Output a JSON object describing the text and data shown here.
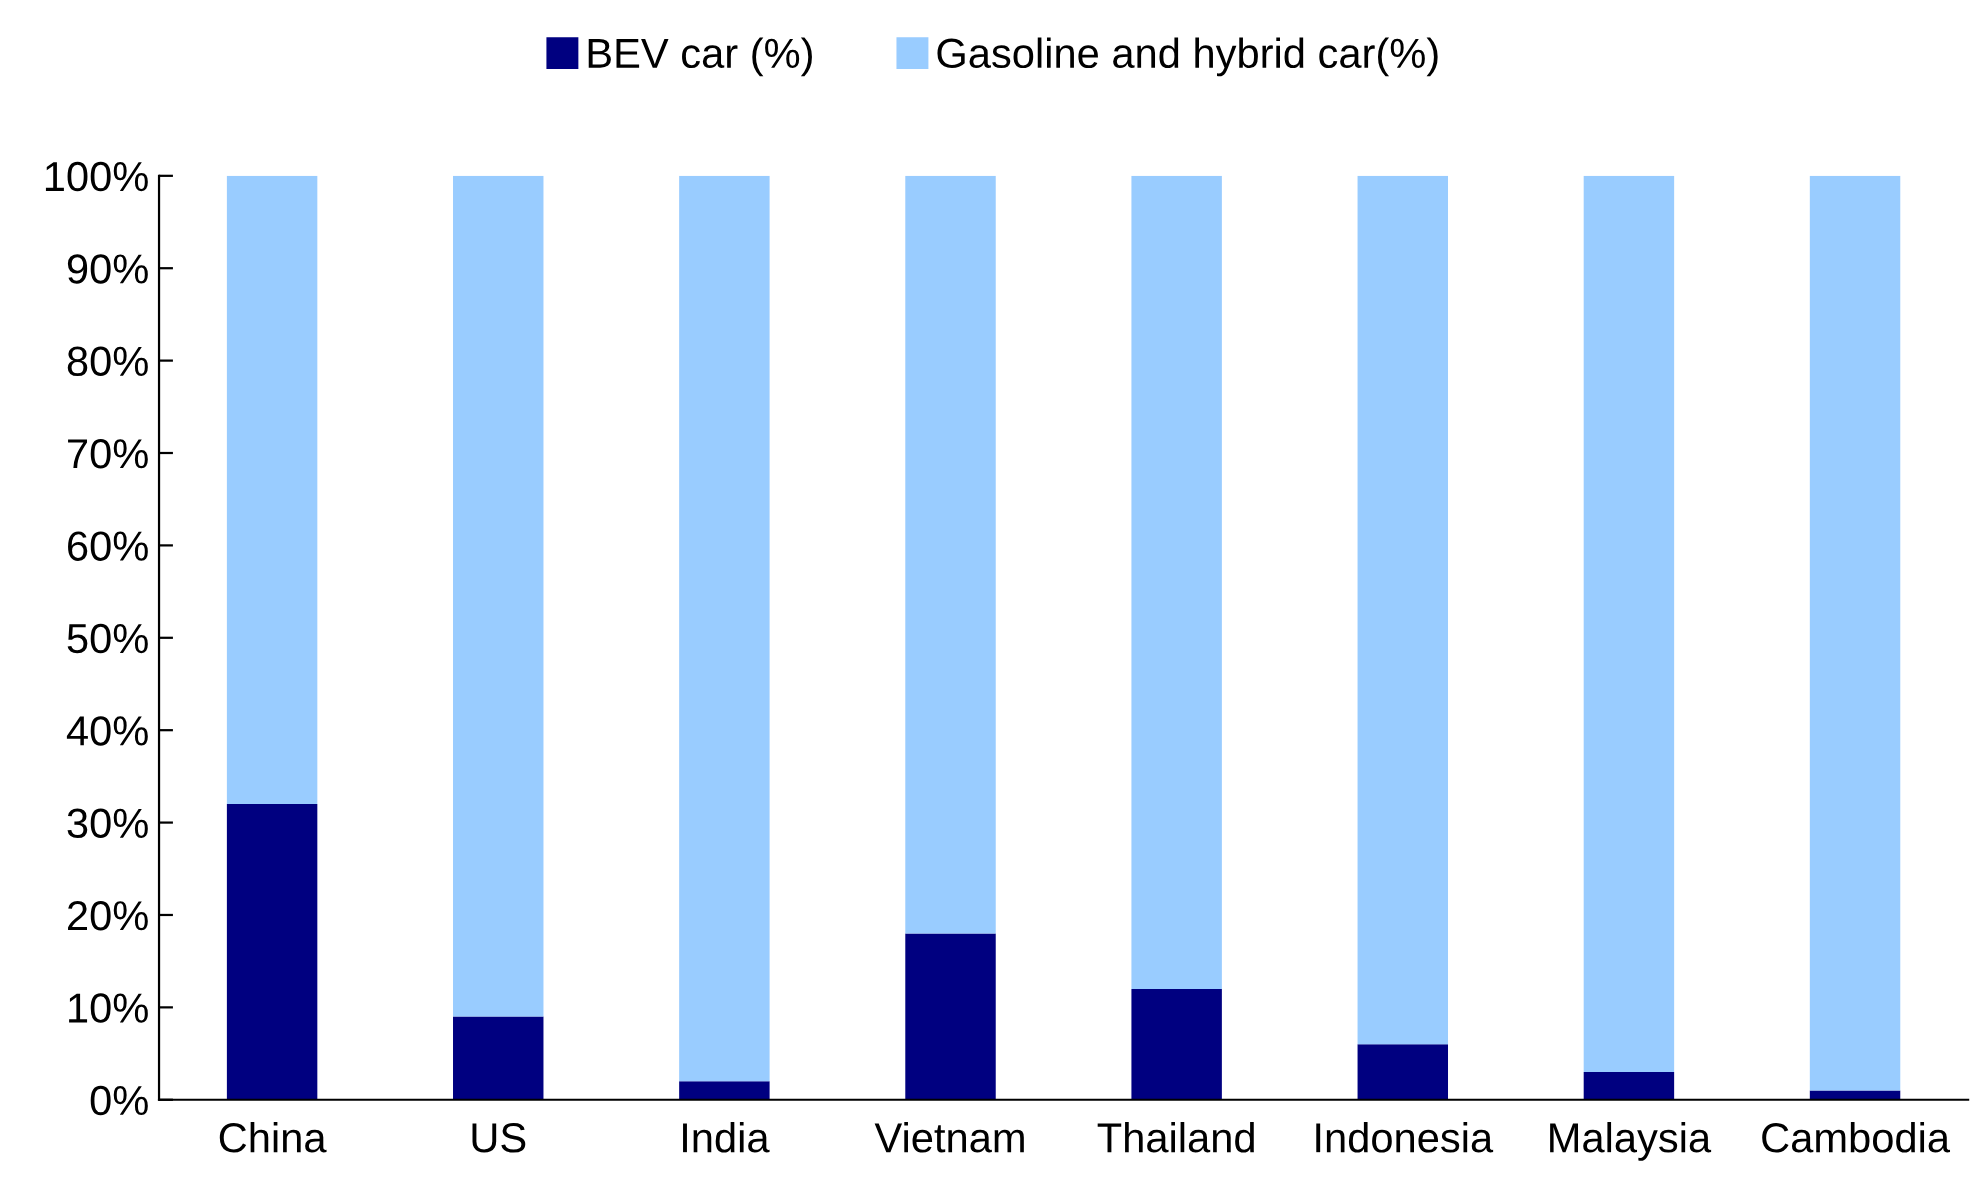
{
  "chart_data": {
    "type": "bar",
    "stacked": true,
    "categories": [
      "China",
      "US",
      "India",
      "Vietnam",
      "Thailand",
      "Indonesia",
      "Malaysia",
      "Cambodia"
    ],
    "series": [
      {
        "name": "BEV car (%)",
        "color": "#000080",
        "values": [
          32,
          9,
          2,
          18,
          12,
          6,
          3,
          1
        ]
      },
      {
        "name": "Gasoline and hybrid car(%)",
        "color": "#99ccff",
        "values": [
          68,
          91,
          98,
          82,
          88,
          94,
          97,
          99
        ]
      }
    ],
    "ylim": [
      0,
      100
    ],
    "yticks": [
      {
        "value": 0,
        "label": "0%"
      },
      {
        "value": 10,
        "label": "10%"
      },
      {
        "value": 20,
        "label": "20%"
      },
      {
        "value": 30,
        "label": "30%"
      },
      {
        "value": 40,
        "label": "40%"
      },
      {
        "value": 50,
        "label": "50%"
      },
      {
        "value": 60,
        "label": "60%"
      },
      {
        "value": 70,
        "label": "70%"
      },
      {
        "value": 80,
        "label": "80%"
      },
      {
        "value": 90,
        "label": "90%"
      },
      {
        "value": 100,
        "label": "100%"
      }
    ],
    "grid": false,
    "legend": "top"
  }
}
